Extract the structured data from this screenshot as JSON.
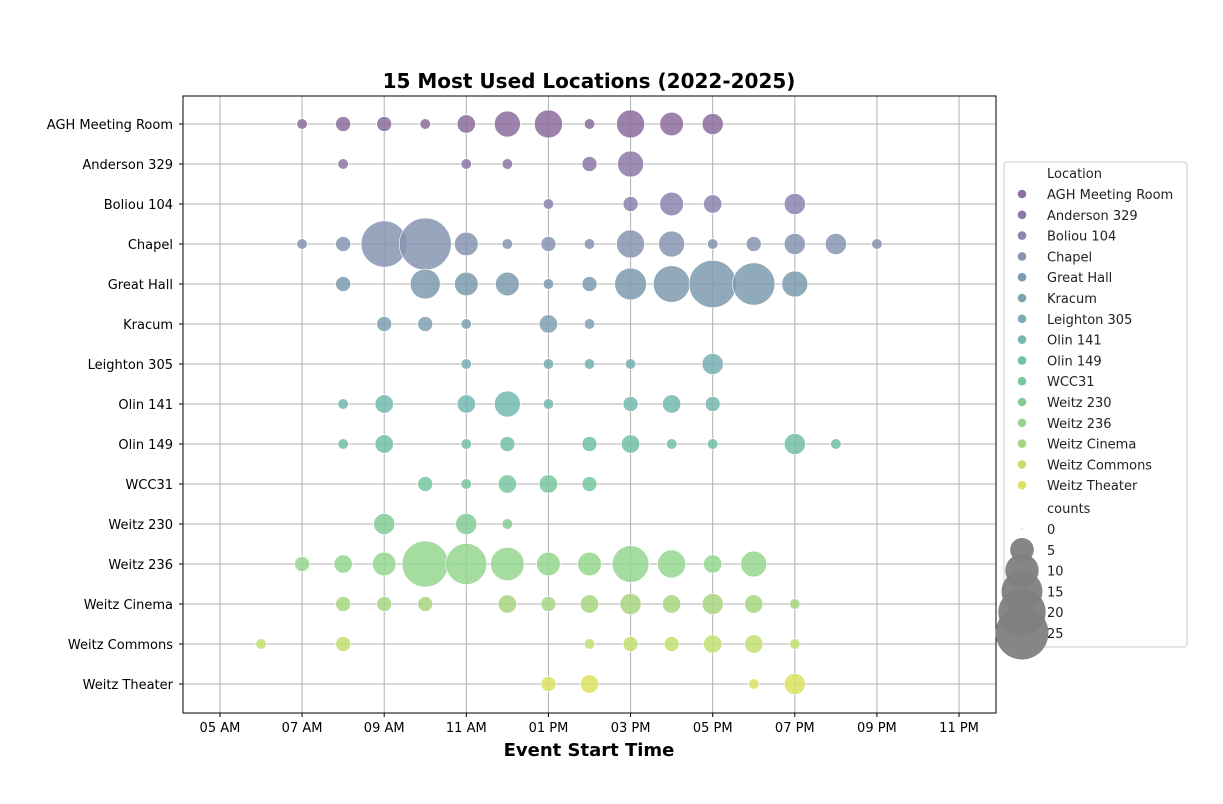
{
  "chart_data": {
    "type": "scatter",
    "title": "15 Most Used Locations (2022-2025)",
    "xlabel": "Event Start Time",
    "ylabel": "",
    "x_ticks": [
      {
        "hour": 5,
        "label": "05 AM"
      },
      {
        "hour": 7,
        "label": "07 AM"
      },
      {
        "hour": 9,
        "label": "09 AM"
      },
      {
        "hour": 11,
        "label": "11 AM"
      },
      {
        "hour": 13,
        "label": "01 PM"
      },
      {
        "hour": 15,
        "label": "03 PM"
      },
      {
        "hour": 17,
        "label": "05 PM"
      },
      {
        "hour": 19,
        "label": "07 PM"
      },
      {
        "hour": 21,
        "label": "09 PM"
      },
      {
        "hour": 23,
        "label": "11 PM"
      }
    ],
    "xlim": [
      4.1,
      23.9
    ],
    "grid": true,
    "legend_position": "right, outside plot",
    "legend_title_color": "Location",
    "legend_title_size": "counts",
    "size_legend": [
      0,
      5,
      10,
      15,
      20,
      25
    ],
    "size_legend_color": "#7f7f7f",
    "categories": [
      "AGH Meeting Room",
      "Anderson 329",
      "Boliou 104",
      "Chapel",
      "Great Hall",
      "Kracum",
      "Leighton 305",
      "Olin 141",
      "Olin 149",
      "WCC31",
      "Weitz 230",
      "Weitz 236",
      "Weitz Cinema",
      "Weitz Commons",
      "Weitz Theater"
    ],
    "series": [
      {
        "name": "AGH Meeting Room",
        "color": "#8c6d9e",
        "points": [
          [
            7,
            1
          ],
          [
            8,
            2
          ],
          [
            9,
            2
          ],
          [
            10,
            1
          ],
          [
            11,
            3
          ],
          [
            12,
            6
          ],
          [
            13,
            7
          ],
          [
            14,
            1
          ],
          [
            15,
            7
          ],
          [
            16,
            5
          ],
          [
            17,
            4
          ]
        ]
      },
      {
        "name": "Anderson 329",
        "color": "#8c78a6",
        "points": [
          [
            8,
            1
          ],
          [
            11,
            1
          ],
          [
            12,
            1
          ],
          [
            14,
            2
          ],
          [
            15,
            6
          ]
        ]
      },
      {
        "name": "Boliou 104",
        "color": "#8a85ae",
        "points": [
          [
            13,
            1
          ],
          [
            15,
            2
          ],
          [
            16,
            5
          ],
          [
            17,
            3
          ],
          [
            19,
            4
          ]
        ]
      },
      {
        "name": "Chapel",
        "color": "#8794b2",
        "points": [
          [
            7,
            1
          ],
          [
            8,
            2
          ],
          [
            9,
            19
          ],
          [
            10,
            24
          ],
          [
            11,
            5
          ],
          [
            12,
            1
          ],
          [
            13,
            2
          ],
          [
            14,
            1
          ],
          [
            15,
            7
          ],
          [
            16,
            6
          ],
          [
            17,
            1
          ],
          [
            18,
            2
          ],
          [
            19,
            4
          ],
          [
            20,
            4
          ],
          [
            21,
            1
          ]
        ]
      },
      {
        "name": "Great Hall",
        "color": "#7d9bb0",
        "points": [
          [
            8,
            2
          ],
          [
            10,
            8
          ],
          [
            11,
            5
          ],
          [
            12,
            5
          ],
          [
            13,
            1
          ],
          [
            14,
            2
          ],
          [
            15,
            9
          ],
          [
            16,
            12
          ],
          [
            17,
            20
          ],
          [
            18,
            16
          ],
          [
            19,
            6
          ]
        ]
      },
      {
        "name": "Kracum",
        "color": "#7ea1b2",
        "points": [
          [
            9,
            2
          ],
          [
            10,
            2
          ],
          [
            11,
            1
          ],
          [
            13,
            3
          ],
          [
            14,
            1
          ]
        ]
      },
      {
        "name": "Leighton 305",
        "color": "#77aeb4",
        "points": [
          [
            11,
            1
          ],
          [
            13,
            1
          ],
          [
            14,
            1
          ],
          [
            15,
            1
          ],
          [
            17,
            4
          ]
        ]
      },
      {
        "name": "Olin 141",
        "color": "#73b8b0",
        "points": [
          [
            8,
            1
          ],
          [
            9,
            3
          ],
          [
            11,
            3
          ],
          [
            12,
            6
          ],
          [
            13,
            1
          ],
          [
            15,
            2
          ],
          [
            16,
            3
          ],
          [
            17,
            2
          ]
        ]
      },
      {
        "name": "Olin 149",
        "color": "#73bfa6",
        "points": [
          [
            8,
            1
          ],
          [
            9,
            3
          ],
          [
            11,
            1
          ],
          [
            12,
            2
          ],
          [
            14,
            2
          ],
          [
            15,
            3
          ],
          [
            16,
            1
          ],
          [
            17,
            1
          ],
          [
            19,
            4
          ],
          [
            20,
            1
          ]
        ]
      },
      {
        "name": "WCC31",
        "color": "#78c7a0",
        "points": [
          [
            10,
            2
          ],
          [
            11,
            1
          ],
          [
            12,
            3
          ],
          [
            13,
            3
          ],
          [
            14,
            2
          ]
        ]
      },
      {
        "name": "Weitz 230",
        "color": "#84cc96",
        "points": [
          [
            9,
            4
          ],
          [
            11,
            4
          ],
          [
            12,
            1
          ]
        ]
      },
      {
        "name": "Weitz 236",
        "color": "#95d68f",
        "points": [
          [
            7,
            2
          ],
          [
            8,
            3
          ],
          [
            9,
            5
          ],
          [
            10,
            19
          ],
          [
            11,
            15
          ],
          [
            12,
            10
          ],
          [
            13,
            5
          ],
          [
            14,
            5
          ],
          [
            15,
            12
          ],
          [
            16,
            7
          ],
          [
            17,
            3
          ],
          [
            18,
            6
          ]
        ]
      },
      {
        "name": "Weitz Cinema",
        "color": "#a8d680",
        "points": [
          [
            8,
            2
          ],
          [
            9,
            2
          ],
          [
            10,
            2
          ],
          [
            12,
            3
          ],
          [
            13,
            2
          ],
          [
            14,
            3
          ],
          [
            15,
            4
          ],
          [
            16,
            3
          ],
          [
            17,
            4
          ],
          [
            18,
            3
          ],
          [
            19,
            1
          ]
        ]
      },
      {
        "name": "Weitz Commons",
        "color": "#c2df70",
        "points": [
          [
            6,
            1
          ],
          [
            8,
            2
          ],
          [
            14,
            1
          ],
          [
            15,
            2
          ],
          [
            16,
            2
          ],
          [
            17,
            3
          ],
          [
            18,
            3
          ],
          [
            19,
            1
          ]
        ]
      },
      {
        "name": "Weitz Theater",
        "color": "#dbe260",
        "points": [
          [
            13,
            2
          ],
          [
            14,
            3
          ],
          [
            18,
            1
          ],
          [
            19,
            4
          ]
        ]
      }
    ]
  }
}
